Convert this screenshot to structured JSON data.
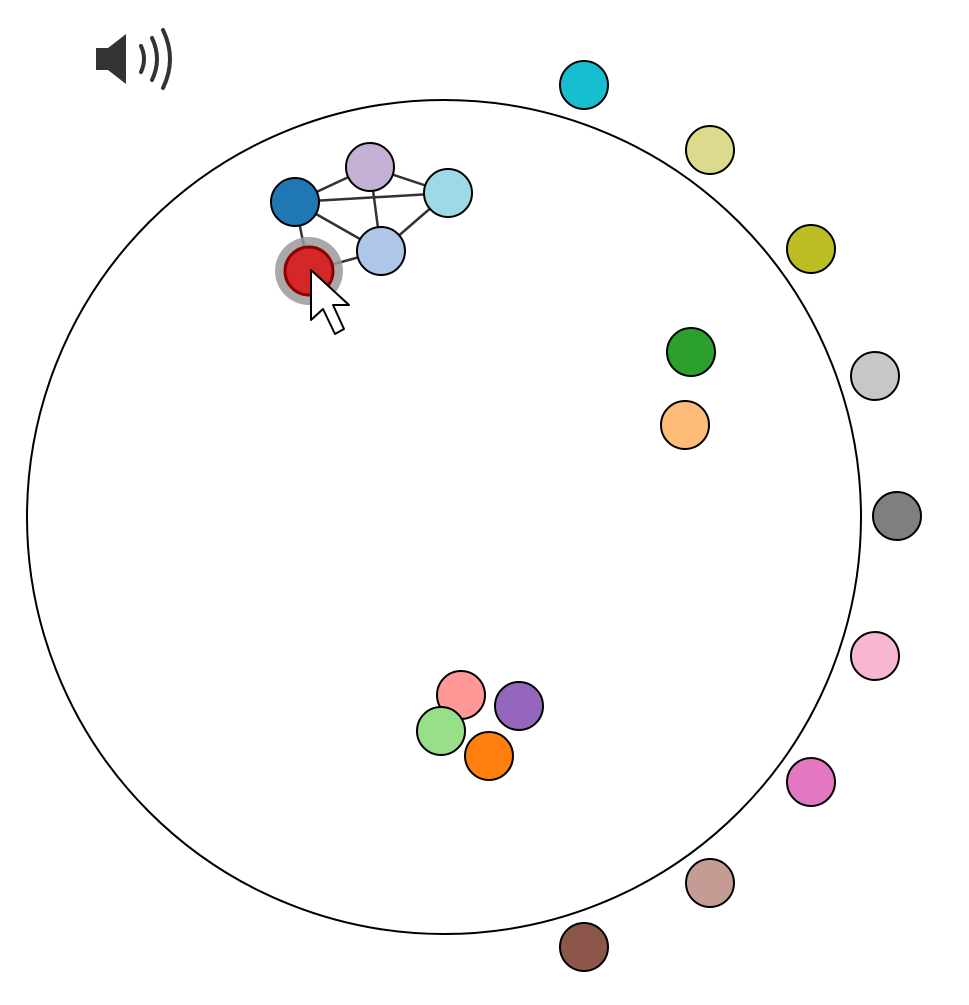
{
  "game": {
    "selected_node": "red",
    "cursor": "arrow-cursor"
  },
  "toolbar": {
    "sound_icon": "speaker-volume-icon"
  },
  "node_colors": {
    "steelblue": "#1f77b4",
    "lavender": "#c5b0d5",
    "lightcyan": "#9edae5",
    "lightblue": "#aec7e8",
    "red": "#d62728",
    "cyan": "#17becf",
    "khaki": "#dbdb8d",
    "olive": "#bcbd22",
    "lightgray": "#c7c7c7",
    "gray": "#7f7f7f",
    "pink": "#f7b6d2",
    "magenta": "#e377c2",
    "rosybrown": "#c49c94",
    "brown": "#8c564b",
    "green": "#2ca02c",
    "peach": "#ffbb78",
    "salmon": "#ff9896",
    "purple": "#9467bd",
    "lightgreen": "#98df8a",
    "orange": "#ff7f0e"
  },
  "groups": {
    "connected_cluster": [
      "steelblue",
      "lavender",
      "lightcyan",
      "lightblue",
      "red"
    ],
    "pair_cluster": [
      "green",
      "peach"
    ],
    "bottom_cluster": [
      "salmon",
      "purple",
      "lightgreen",
      "orange"
    ],
    "outside_ring": [
      "cyan",
      "khaki",
      "olive",
      "lightgray",
      "gray",
      "pink",
      "magenta",
      "rosybrown",
      "brown"
    ]
  },
  "edges": [
    [
      "steelblue",
      "lavender"
    ],
    [
      "steelblue",
      "lightcyan"
    ],
    [
      "steelblue",
      "lightblue"
    ],
    [
      "steelblue",
      "red"
    ],
    [
      "lavender",
      "lightcyan"
    ],
    [
      "lavender",
      "lightblue"
    ],
    [
      "lightcyan",
      "lightblue"
    ],
    [
      "lightblue",
      "red"
    ]
  ]
}
